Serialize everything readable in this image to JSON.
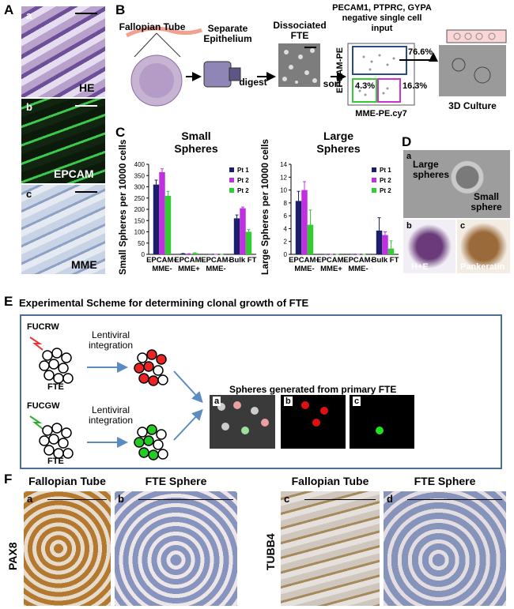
{
  "panel_labels": [
    "A",
    "B",
    "C",
    "D",
    "E",
    "F"
  ],
  "panel_a": {
    "sublabels": [
      "a",
      "b",
      "c"
    ],
    "stains": [
      "HE",
      "EPCAM",
      "MME"
    ]
  },
  "panel_b": {
    "fallopian_tube": "Fallopian Tube",
    "separate_epithelium": "Separate Epithelium",
    "digest": "digest",
    "dissociated_fte": "Dissociated FTE",
    "selection": "PECAM1, PTPRC, GYPA negative single cell input",
    "sort": "sort",
    "y_label": "EPCAM-PE",
    "x_label": "MME-PE.cy7",
    "gates": [
      "76.6%",
      "4.3%",
      "16.3%"
    ],
    "culture": "3D Culture"
  },
  "chart_data": [
    {
      "type": "bar",
      "title": "Small Spheres",
      "y_label": "Small Spheres per 10000 cells",
      "categories": [
        "EPCAM+ MME-",
        "EPCAM- MME+",
        "EPCAM- MME-",
        "Bulk FT"
      ],
      "series": [
        {
          "name": "Pt 1",
          "color": "#1b1f6b",
          "values": [
            310,
            3,
            0,
            160
          ],
          "errors": [
            20,
            1,
            0,
            15
          ]
        },
        {
          "name": "Pt 2",
          "color": "#c030e0",
          "values": [
            365,
            2,
            0,
            205
          ],
          "errors": [
            15,
            1,
            0,
            5
          ]
        },
        {
          "name": "Pt 2",
          "color": "#33cc33",
          "values": [
            260,
            5,
            0,
            100
          ],
          "errors": [
            20,
            2,
            0,
            10
          ]
        }
      ],
      "ylim": [
        0,
        400
      ],
      "yticks": [
        0,
        50,
        100,
        150,
        200,
        250,
        300,
        350,
        400
      ],
      "legend": "top-right"
    },
    {
      "type": "bar",
      "title": "Large Spheres",
      "y_label": "Large Spheres per 10000 cells",
      "categories": [
        "EPCAM+ MME-",
        "EPCAM- MME+",
        "EPCAM- MME-",
        "Bulk FT"
      ],
      "series": [
        {
          "name": "Pt 1",
          "color": "#1b1f6b",
          "values": [
            8.3,
            0,
            0,
            3.7
          ],
          "errors": [
            1.5,
            0,
            0,
            2
          ]
        },
        {
          "name": "Pt 2",
          "color": "#c030e0",
          "values": [
            10,
            0,
            0,
            3
          ],
          "errors": [
            1.3,
            0,
            0,
            0.5
          ]
        },
        {
          "name": "Pt 2",
          "color": "#33cc33",
          "values": [
            4.6,
            0,
            0,
            0.9
          ],
          "errors": [
            2.3,
            0,
            0,
            1.2
          ]
        }
      ],
      "ylim": [
        0,
        14
      ],
      "yticks": [
        0,
        2,
        4,
        6,
        8,
        10,
        12,
        14
      ],
      "legend": "top-right"
    }
  ],
  "panel_d": {
    "sublabels": [
      "a",
      "b",
      "c"
    ],
    "large": "Large spheres",
    "small": "Small sphere",
    "stains": [
      "H+E",
      "Pankeratin"
    ]
  },
  "panel_e": {
    "title": "Experimental Scheme for determining clonal growth of FTE",
    "vectors": [
      "FUCRW",
      "FUCGW"
    ],
    "integration": [
      "Lentiviral integration",
      "Lentiviral integration"
    ],
    "cells": [
      "FTE",
      "FTE"
    ],
    "spheres_title": "Spheres generated from primary FTE",
    "sublabels": [
      "a",
      "b",
      "c"
    ]
  },
  "panel_f": {
    "headers": [
      "Fallopian Tube",
      "FTE Sphere",
      "Fallopian Tube",
      "FTE Sphere"
    ],
    "markers": [
      "PAX8",
      "TUBB4"
    ],
    "sublabels": [
      "a",
      "b",
      "c",
      "d"
    ]
  }
}
